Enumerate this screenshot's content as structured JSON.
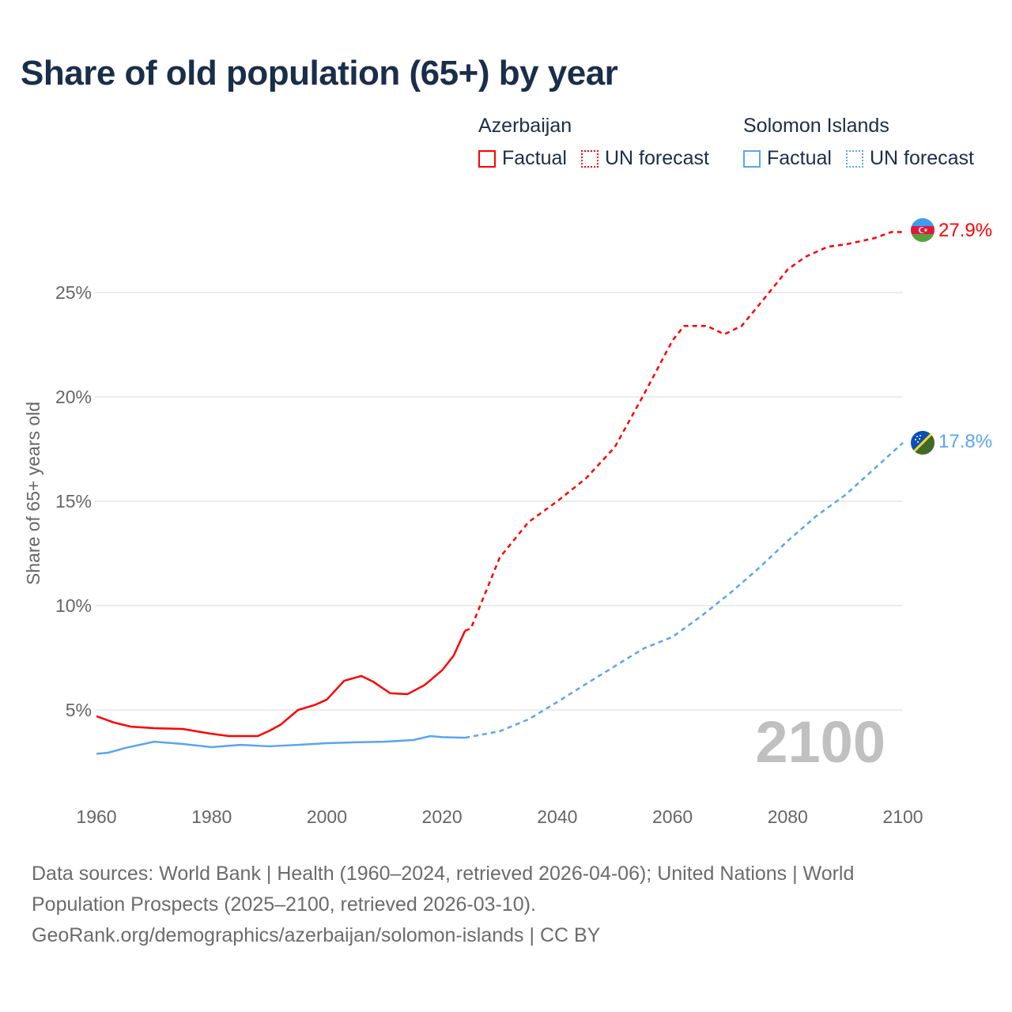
{
  "title": "Share of old population (65+) by year",
  "legend": {
    "groups": [
      {
        "name": "Azerbaijan",
        "color": "#ff0000",
        "factual": "Factual",
        "forecast": "UN forecast"
      },
      {
        "name": "Solomon Islands",
        "color": "#5aa5f0",
        "factual": "Factual",
        "forecast": "UN forecast"
      }
    ]
  },
  "year_watermark": "2100",
  "footer": {
    "line1": "Data sources: World Bank | Health (1960–2024, retrieved 2026-04-06); United Nations | World",
    "line2": "Population Prospects (2025–2100, retrieved 2026-03-10).",
    "line3": "GeoRank.org/demographics/azerbaijan/solomon-islands | CC BY"
  },
  "chart_data": {
    "type": "line",
    "title": "Share of old population (65+) by year",
    "xlabel": "",
    "ylabel": "Share of 65+ years old",
    "xlim": [
      1960,
      2100
    ],
    "ylim": [
      0,
      29
    ],
    "x_ticks": [
      "1960",
      "1980",
      "2000",
      "2020",
      "2040",
      "2060",
      "2080",
      "2100"
    ],
    "x_tick_values": [
      1960,
      1980,
      2000,
      2020,
      2040,
      2060,
      2080,
      2100
    ],
    "y_ticks": [
      "5%",
      "10%",
      "15%",
      "20%",
      "25%"
    ],
    "y_tick_values": [
      5,
      10,
      15,
      20,
      25
    ],
    "grid": true,
    "legend_position": "top-right",
    "series": [
      {
        "name": "Azerbaijan",
        "kind": "factual",
        "color": "#ff0000",
        "x": [
          1960,
          1963,
          1966,
          1970,
          1975,
          1978,
          1980,
          1983,
          1988,
          1990,
          1992,
          1995,
          1998,
          2000,
          2003,
          2006,
          2008,
          2011,
          2014,
          2017,
          2020,
          2022,
          2024
        ],
        "values": [
          4.7,
          4.4,
          4.2,
          4.13,
          4.09,
          3.95,
          3.86,
          3.75,
          3.75,
          4.0,
          4.3,
          5.0,
          5.25,
          5.5,
          6.4,
          6.63,
          6.36,
          5.8,
          5.76,
          6.2,
          6.9,
          7.6,
          8.8
        ]
      },
      {
        "name": "Azerbaijan",
        "kind": "forecast",
        "color": "#ff0000",
        "x": [
          2024,
          2025,
          2030,
          2035,
          2040,
          2045,
          2050,
          2055,
          2060,
          2062,
          2066,
          2069,
          2072,
          2075,
          2080,
          2083,
          2087,
          2090,
          2095,
          2098,
          2100
        ],
        "values": [
          8.8,
          8.9,
          12.3,
          14.0,
          15.0,
          16.1,
          17.6,
          20.1,
          22.7,
          23.4,
          23.4,
          23.0,
          23.4,
          24.4,
          26.1,
          26.7,
          27.2,
          27.3,
          27.6,
          27.9,
          27.9
        ]
      },
      {
        "name": "Solomon Islands",
        "kind": "factual",
        "color": "#5aa5f0",
        "x": [
          1960,
          1962,
          1965,
          1970,
          1975,
          1980,
          1985,
          1990,
          1995,
          2000,
          2005,
          2010,
          2015,
          2018,
          2020,
          2024
        ],
        "values": [
          2.9,
          2.95,
          3.18,
          3.48,
          3.37,
          3.22,
          3.33,
          3.26,
          3.33,
          3.41,
          3.45,
          3.48,
          3.56,
          3.75,
          3.7,
          3.67
        ],
        "end_label": ""
      },
      {
        "name": "Solomon Islands",
        "kind": "forecast",
        "color": "#5aa5f0",
        "x": [
          2024,
          2030,
          2035,
          2040,
          2045,
          2050,
          2055,
          2060,
          2065,
          2070,
          2075,
          2080,
          2085,
          2090,
          2095,
          2100
        ],
        "values": [
          3.67,
          3.98,
          4.55,
          5.38,
          6.25,
          7.1,
          7.95,
          8.5,
          9.5,
          10.6,
          11.8,
          13.1,
          14.3,
          15.3,
          16.55,
          17.8
        ]
      }
    ],
    "end_labels": [
      {
        "country": "Azerbaijan",
        "text": "27.9%",
        "value": 27.9,
        "color": "#ff0000"
      },
      {
        "country": "Solomon Islands",
        "text": "17.8%",
        "value": 17.8,
        "color": "#5aa5f0"
      }
    ]
  }
}
